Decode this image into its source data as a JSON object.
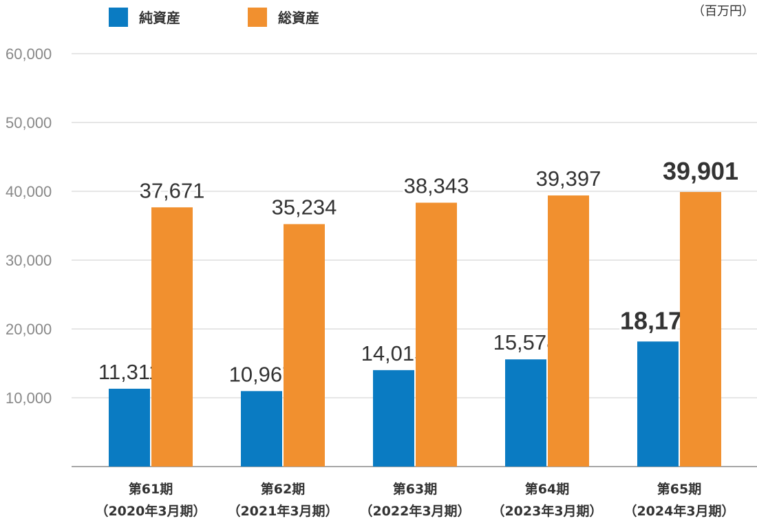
{
  "chart_data": {
    "type": "bar",
    "unit": "（百万円）",
    "categories": [
      [
        "第61期",
        "（2020年3月期）"
      ],
      [
        "第62期",
        "（2021年3月期）"
      ],
      [
        "第63期",
        "（2022年3月期）"
      ],
      [
        "第64期",
        "（2023年3月期）"
      ],
      [
        "第65期",
        "（2024年3月期）"
      ]
    ],
    "series": [
      {
        "name": "純資産",
        "color": "#0a7bc2",
        "values": [
          11311,
          10967,
          14015,
          15578,
          18173
        ],
        "labels": [
          "11,311",
          "10,967",
          "14,015",
          "15,578",
          "18,173"
        ]
      },
      {
        "name": "総資産",
        "color": "#f1902f",
        "values": [
          37671,
          35234,
          38343,
          39397,
          39901
        ],
        "labels": [
          "37,671",
          "35,234",
          "38,343",
          "39,397",
          "39,901"
        ]
      }
    ],
    "highlight_index": 4,
    "ylim": [
      0,
      60000
    ],
    "yticks": [
      10000,
      20000,
      30000,
      40000,
      50000,
      60000
    ],
    "ytick_labels": [
      "10,000",
      "20,000",
      "30,000",
      "40,000",
      "50,000",
      "60,000"
    ],
    "grid": true,
    "legend_position": "top-left"
  }
}
